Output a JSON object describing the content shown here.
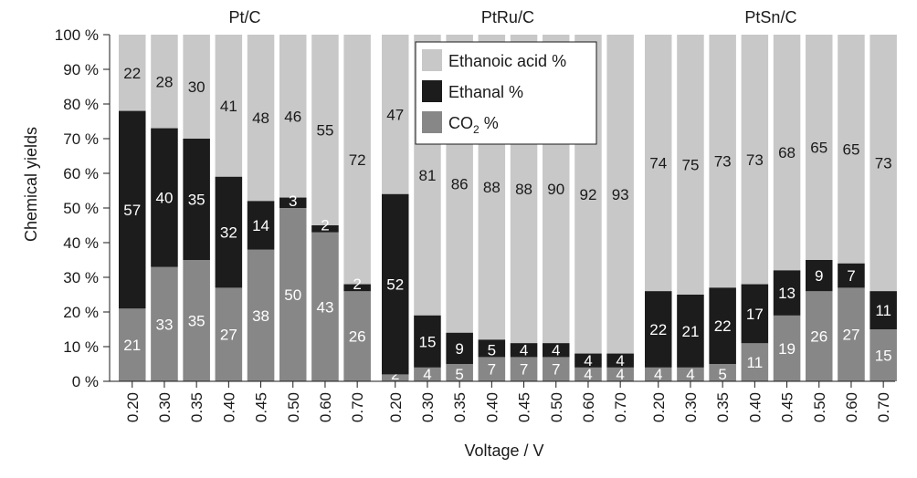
{
  "chart_data": {
    "type": "bar",
    "stacked": true,
    "ylabel": "Chemical yields",
    "xlabel": "Voltage / V",
    "ylim": [
      0,
      100
    ],
    "y_ticks": [
      "0 %",
      "10 %",
      "20 %",
      "30 %",
      "40 %",
      "50 %",
      "60 %",
      "70 %",
      "80 %",
      "90 %",
      "100 %"
    ],
    "legend": {
      "placement": "top-center",
      "entries": [
        {
          "label": "Ethanoic acid %",
          "color": "#c8c8c8"
        },
        {
          "label": "Ethanal %",
          "color": "#1c1c1c"
        },
        {
          "label_main": "CO",
          "label_sub": "2",
          "label_tail": " %",
          "color": "#878787"
        }
      ]
    },
    "colors": {
      "co2": "#878787",
      "ethanal": "#1c1c1c",
      "ethanoic": "#c8c8c8"
    },
    "panels": [
      {
        "title": "Pt/C",
        "categories": [
          "0.20",
          "0.30",
          "0.35",
          "0.40",
          "0.45",
          "0.50",
          "0.60",
          "0.70"
        ],
        "series": [
          {
            "name": "CO2 %",
            "values": [
              21,
              33,
              35,
              27,
              38,
              50,
              43,
              26
            ]
          },
          {
            "name": "Ethanal %",
            "values": [
              57,
              40,
              35,
              32,
              14,
              3,
              2,
              2
            ]
          },
          {
            "name": "Ethanoic acid %",
            "values": [
              22,
              28,
              30,
              41,
              48,
              46,
              55,
              72
            ]
          }
        ]
      },
      {
        "title": "PtRu/C",
        "categories": [
          "0.20",
          "0.30",
          "0.35",
          "0.40",
          "0.45",
          "0.50",
          "0.60",
          "0.70"
        ],
        "series": [
          {
            "name": "CO2 %",
            "values": [
              2,
              4,
              5,
              7,
              7,
              7,
              4,
              4
            ]
          },
          {
            "name": "Ethanal %",
            "values": [
              52,
              15,
              9,
              5,
              4,
              4,
              4,
              4
            ]
          },
          {
            "name": "Ethanoic acid %",
            "values": [
              47,
              81,
              86,
              88,
              88,
              90,
              92,
              93
            ]
          }
        ]
      },
      {
        "title": "PtSn/C",
        "categories": [
          "0.20",
          "0.30",
          "0.35",
          "0.40",
          "0.45",
          "0.50",
          "0.60",
          "0.70"
        ],
        "series": [
          {
            "name": "CO2 %",
            "values": [
              4,
              4,
              5,
              11,
              19,
              26,
              27,
              15
            ]
          },
          {
            "name": "Ethanal %",
            "values": [
              22,
              21,
              22,
              17,
              13,
              9,
              7,
              11
            ]
          },
          {
            "name": "Ethanoic acid %",
            "values": [
              74,
              75,
              73,
              73,
              68,
              65,
              65,
              73
            ]
          }
        ]
      }
    ]
  }
}
